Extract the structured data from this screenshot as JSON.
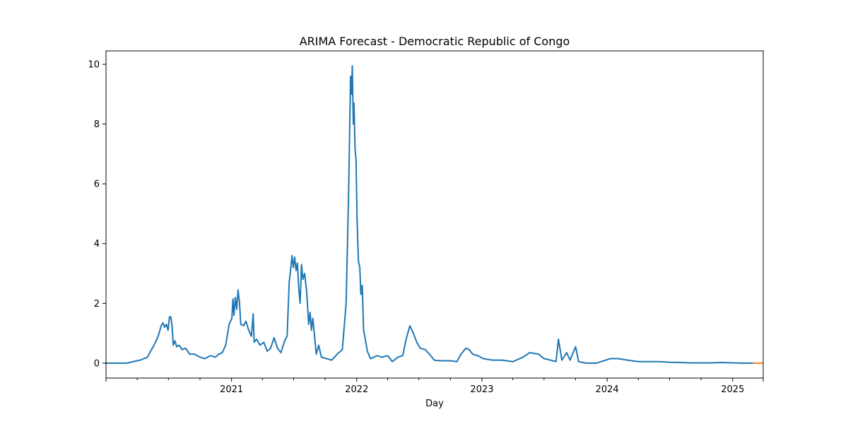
{
  "chart_data": {
    "type": "line",
    "title": "ARIMA Forecast - Democratic Republic of Congo",
    "xlabel": "Day",
    "ylabel": "",
    "x_axis": {
      "type": "date",
      "range": [
        "2020-01-01",
        "2025-03-31"
      ],
      "major_ticks": [
        "2021-01-01",
        "2022-01-01",
        "2023-01-01",
        "2024-01-01",
        "2025-01-01"
      ],
      "major_tick_labels": [
        "2021",
        "2022",
        "2023",
        "2024",
        "2025"
      ]
    },
    "y_axis": {
      "range": [
        -0.5,
        10.45
      ],
      "ticks": [
        0,
        2,
        4,
        6,
        8,
        10
      ],
      "tick_labels": [
        "0",
        "2",
        "4",
        "6",
        "8",
        "10"
      ]
    },
    "grid": false,
    "legend": "none",
    "series": [
      {
        "color": "#1f77b4",
        "points": [
          [
            "2020-01-01",
            0
          ],
          [
            "2020-03-01",
            0
          ],
          [
            "2020-03-20",
            0.05
          ],
          [
            "2020-04-10",
            0.1
          ],
          [
            "2020-04-20",
            0.15
          ],
          [
            "2020-05-01",
            0.2
          ],
          [
            "2020-05-10",
            0.4
          ],
          [
            "2020-05-20",
            0.6
          ],
          [
            "2020-06-01",
            0.9
          ],
          [
            "2020-06-10",
            1.25
          ],
          [
            "2020-06-15",
            1.35
          ],
          [
            "2020-06-20",
            1.2
          ],
          [
            "2020-06-25",
            1.3
          ],
          [
            "2020-06-30",
            1.1
          ],
          [
            "2020-07-04",
            1.55
          ],
          [
            "2020-07-08",
            1.55
          ],
          [
            "2020-07-12",
            1.2
          ],
          [
            "2020-07-15",
            0.6
          ],
          [
            "2020-07-20",
            0.75
          ],
          [
            "2020-07-25",
            0.55
          ],
          [
            "2020-08-01",
            0.6
          ],
          [
            "2020-08-10",
            0.45
          ],
          [
            "2020-08-20",
            0.5
          ],
          [
            "2020-09-01",
            0.3
          ],
          [
            "2020-09-15",
            0.3
          ],
          [
            "2020-10-01",
            0.2
          ],
          [
            "2020-10-15",
            0.15
          ],
          [
            "2020-11-01",
            0.25
          ],
          [
            "2020-11-15",
            0.2
          ],
          [
            "2020-11-25",
            0.3
          ],
          [
            "2020-12-05",
            0.35
          ],
          [
            "2020-12-15",
            0.6
          ],
          [
            "2020-12-25",
            1.3
          ],
          [
            "2021-01-02",
            1.5
          ],
          [
            "2021-01-05",
            2.15
          ],
          [
            "2021-01-08",
            1.6
          ],
          [
            "2021-01-12",
            2.2
          ],
          [
            "2021-01-16",
            1.8
          ],
          [
            "2021-01-20",
            2.45
          ],
          [
            "2021-01-24",
            2.05
          ],
          [
            "2021-01-28",
            1.3
          ],
          [
            "2021-02-05",
            1.25
          ],
          [
            "2021-02-12",
            1.4
          ],
          [
            "2021-02-20",
            1.1
          ],
          [
            "2021-02-28",
            0.9
          ],
          [
            "2021-03-05",
            1.65
          ],
          [
            "2021-03-08",
            0.7
          ],
          [
            "2021-03-15",
            0.8
          ],
          [
            "2021-03-25",
            0.6
          ],
          [
            "2021-04-05",
            0.7
          ],
          [
            "2021-04-15",
            0.4
          ],
          [
            "2021-04-25",
            0.5
          ],
          [
            "2021-05-05",
            0.85
          ],
          [
            "2021-05-15",
            0.5
          ],
          [
            "2021-05-25",
            0.35
          ],
          [
            "2021-06-05",
            0.75
          ],
          [
            "2021-06-12",
            0.9
          ],
          [
            "2021-06-18",
            2.7
          ],
          [
            "2021-06-23",
            3.2
          ],
          [
            "2021-06-26",
            3.6
          ],
          [
            "2021-06-30",
            3.2
          ],
          [
            "2021-07-04",
            3.55
          ],
          [
            "2021-07-08",
            3.1
          ],
          [
            "2021-07-12",
            3.35
          ],
          [
            "2021-07-16",
            2.5
          ],
          [
            "2021-07-20",
            2.0
          ],
          [
            "2021-07-24",
            3.3
          ],
          [
            "2021-07-28",
            2.8
          ],
          [
            "2021-08-02",
            3.0
          ],
          [
            "2021-08-08",
            2.4
          ],
          [
            "2021-08-14",
            1.3
          ],
          [
            "2021-08-18",
            1.7
          ],
          [
            "2021-08-22",
            1.1
          ],
          [
            "2021-08-26",
            1.5
          ],
          [
            "2021-09-05",
            0.3
          ],
          [
            "2021-09-12",
            0.6
          ],
          [
            "2021-09-20",
            0.2
          ],
          [
            "2021-10-05",
            0.15
          ],
          [
            "2021-10-20",
            0.1
          ],
          [
            "2021-11-05",
            0.3
          ],
          [
            "2021-11-20",
            0.45
          ],
          [
            "2021-12-01",
            2.0
          ],
          [
            "2021-12-08",
            5.5
          ],
          [
            "2021-12-14",
            9.6
          ],
          [
            "2021-12-17",
            9.0
          ],
          [
            "2021-12-19",
            9.95
          ],
          [
            "2021-12-22",
            8.0
          ],
          [
            "2021-12-24",
            8.7
          ],
          [
            "2021-12-27",
            7.2
          ],
          [
            "2021-12-30",
            6.8
          ],
          [
            "2022-01-02",
            4.8
          ],
          [
            "2022-01-06",
            3.4
          ],
          [
            "2022-01-10",
            3.2
          ],
          [
            "2022-01-13",
            2.3
          ],
          [
            "2022-01-17",
            2.6
          ],
          [
            "2022-01-21",
            1.1
          ],
          [
            "2022-01-26",
            0.8
          ],
          [
            "2022-02-01",
            0.4
          ],
          [
            "2022-02-10",
            0.15
          ],
          [
            "2022-02-20",
            0.2
          ],
          [
            "2022-03-01",
            0.25
          ],
          [
            "2022-03-15",
            0.2
          ],
          [
            "2022-04-01",
            0.25
          ],
          [
            "2022-04-15",
            0.05
          ],
          [
            "2022-05-01",
            0.2
          ],
          [
            "2022-05-15",
            0.25
          ],
          [
            "2022-05-25",
            0.8
          ],
          [
            "2022-06-05",
            1.25
          ],
          [
            "2022-06-15",
            1.0
          ],
          [
            "2022-06-25",
            0.7
          ],
          [
            "2022-07-05",
            0.5
          ],
          [
            "2022-07-20",
            0.45
          ],
          [
            "2022-08-01",
            0.3
          ],
          [
            "2022-08-15",
            0.1
          ],
          [
            "2022-09-01",
            0.08
          ],
          [
            "2022-10-01",
            0.08
          ],
          [
            "2022-10-20",
            0.05
          ],
          [
            "2022-11-01",
            0.3
          ],
          [
            "2022-11-15",
            0.5
          ],
          [
            "2022-11-25",
            0.45
          ],
          [
            "2022-12-05",
            0.3
          ],
          [
            "2022-12-20",
            0.25
          ],
          [
            "2023-01-05",
            0.15
          ],
          [
            "2023-02-01",
            0.1
          ],
          [
            "2023-03-01",
            0.1
          ],
          [
            "2023-04-01",
            0.05
          ],
          [
            "2023-05-01",
            0.2
          ],
          [
            "2023-05-20",
            0.35
          ],
          [
            "2023-06-15",
            0.3
          ],
          [
            "2023-07-01",
            0.15
          ],
          [
            "2023-07-20",
            0.1
          ],
          [
            "2023-08-05",
            0.05
          ],
          [
            "2023-08-12",
            0.8
          ],
          [
            "2023-08-22",
            0.1
          ],
          [
            "2023-09-05",
            0.35
          ],
          [
            "2023-09-15",
            0.1
          ],
          [
            "2023-10-01",
            0.55
          ],
          [
            "2023-10-10",
            0.05
          ],
          [
            "2023-11-01",
            0.0
          ],
          [
            "2023-12-01",
            0.0
          ],
          [
            "2024-01-10",
            0.15
          ],
          [
            "2024-02-01",
            0.15
          ],
          [
            "2024-03-01",
            0.1
          ],
          [
            "2024-04-01",
            0.05
          ],
          [
            "2024-05-01",
            0.05
          ],
          [
            "2024-06-01",
            0.05
          ],
          [
            "2024-07-01",
            0.03
          ],
          [
            "2024-08-01",
            0.02
          ],
          [
            "2024-09-01",
            0.01
          ],
          [
            "2024-11-01",
            0.01
          ],
          [
            "2024-12-01",
            0.02
          ],
          [
            "2025-01-01",
            0.01
          ],
          [
            "2025-02-01",
            0.0
          ],
          [
            "2025-03-01",
            0.0
          ]
        ]
      },
      {
        "color": "#ff7f0e",
        "points": [
          [
            "2025-03-01",
            0.0
          ],
          [
            "2025-03-31",
            0.0
          ]
        ]
      }
    ]
  }
}
